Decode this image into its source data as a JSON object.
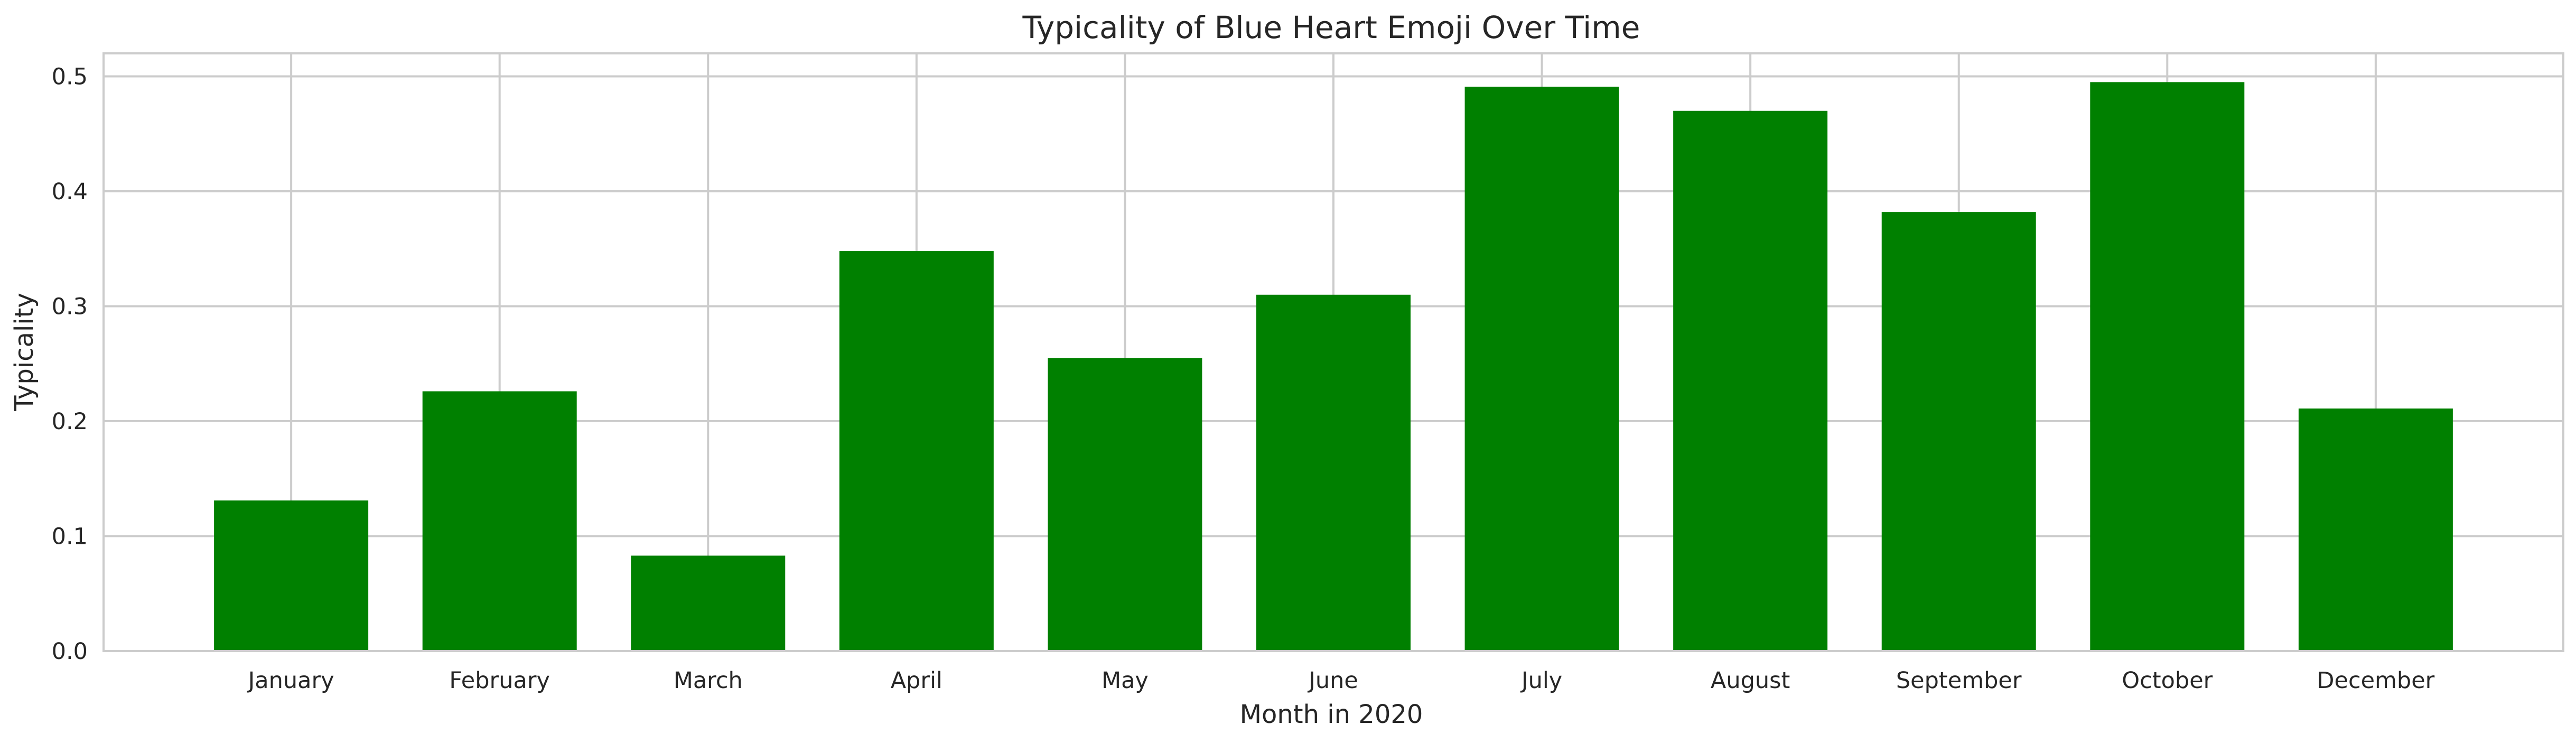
{
  "chart_data": {
    "type": "bar",
    "title": "Typicality of Blue Heart Emoji Over Time",
    "xlabel": "Month in 2020",
    "ylabel": "Typicality",
    "categories": [
      "January",
      "February",
      "March",
      "April",
      "May",
      "June",
      "July",
      "August",
      "September",
      "October",
      "December"
    ],
    "values": [
      0.131,
      0.226,
      0.083,
      0.348,
      0.255,
      0.31,
      0.491,
      0.47,
      0.382,
      0.495,
      0.211
    ],
    "ylim": [
      0,
      0.52
    ],
    "yticks": [
      0.0,
      0.1,
      0.2,
      0.3,
      0.4,
      0.5
    ],
    "ytick_labels": [
      "0.0",
      "0.1",
      "0.2",
      "0.3",
      "0.4",
      "0.5"
    ],
    "grid": true,
    "bar_color": "#008000",
    "grid_color": "#cccccc",
    "text_color": "#262626"
  }
}
